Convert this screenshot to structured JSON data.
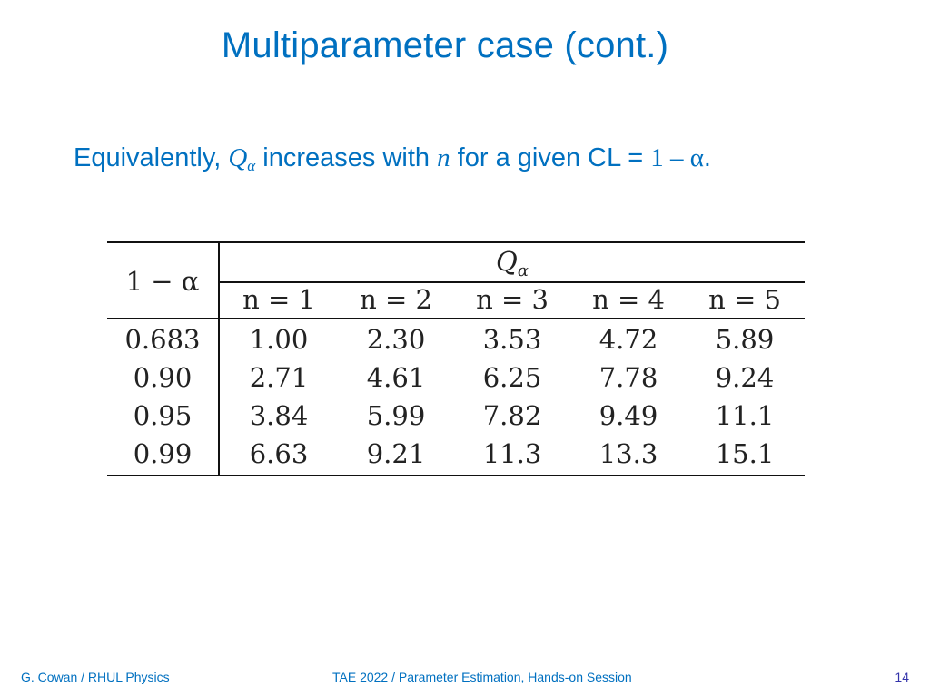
{
  "slide": {
    "title": "Multiparameter case (cont.)",
    "statement": {
      "prefix": "Equivalently,",
      "q_symbol": "Q",
      "q_subscript": "α",
      "middle": "increases with",
      "n_symbol": "n",
      "suffix": "for a given CL =",
      "formula": "1 – α",
      "end": "."
    },
    "table": {
      "corner_label": "1 − α",
      "group_label": "Q",
      "group_subscript": "α",
      "columns": [
        "n = 1",
        "n = 2",
        "n = 3",
        "n = 4",
        "n = 5"
      ],
      "rows": [
        {
          "cl": "0.683",
          "values": [
            "1.00",
            "2.30",
            "3.53",
            "4.72",
            "5.89"
          ]
        },
        {
          "cl": "0.90",
          "values": [
            "2.71",
            "4.61",
            "6.25",
            "7.78",
            "9.24"
          ]
        },
        {
          "cl": "0.95",
          "values": [
            "3.84",
            "5.99",
            "7.82",
            "9.49",
            "11.1"
          ]
        },
        {
          "cl": "0.99",
          "values": [
            "6.63",
            "9.21",
            "11.3",
            "13.3",
            "15.1"
          ]
        }
      ]
    },
    "footer": {
      "author": "G. Cowan / RHUL Physics",
      "event": "TAE 2022 / Parameter Estimation, Hands-on Session",
      "page_number": "14"
    },
    "colors": {
      "accent": "#0070c0",
      "page_number": "#3333aa",
      "table_text": "#222222"
    }
  }
}
